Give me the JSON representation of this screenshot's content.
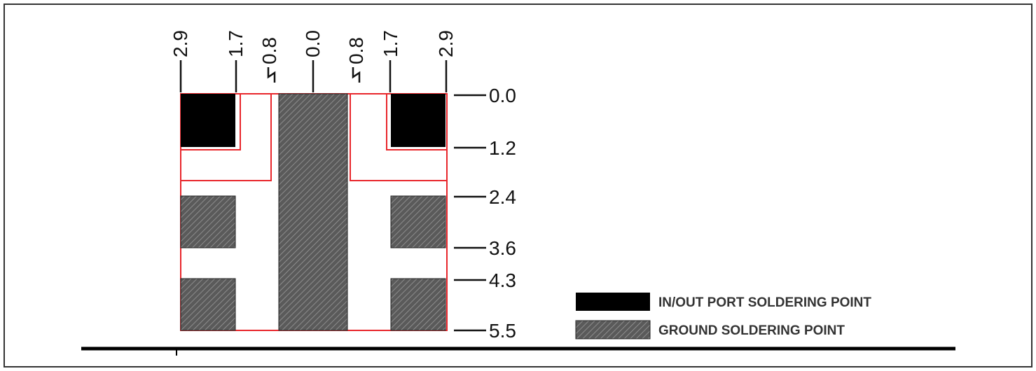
{
  "top_labels": [
    "2.9",
    "1.7",
    "0.8",
    "0.0",
    "0.8",
    "1.7",
    "2.9"
  ],
  "right_labels": [
    "0.0",
    "1.2",
    "2.4",
    "3.6",
    "4.3",
    "5.5"
  ],
  "legend": {
    "inout": {
      "label": "IN/OUT PORT SOLDERING POINT",
      "color": "#000000"
    },
    "ground": {
      "label": "GROUND SOLDERING POINT",
      "color": "#555555"
    }
  },
  "colors": {
    "outline": "#e8262b",
    "border": "#333333"
  }
}
